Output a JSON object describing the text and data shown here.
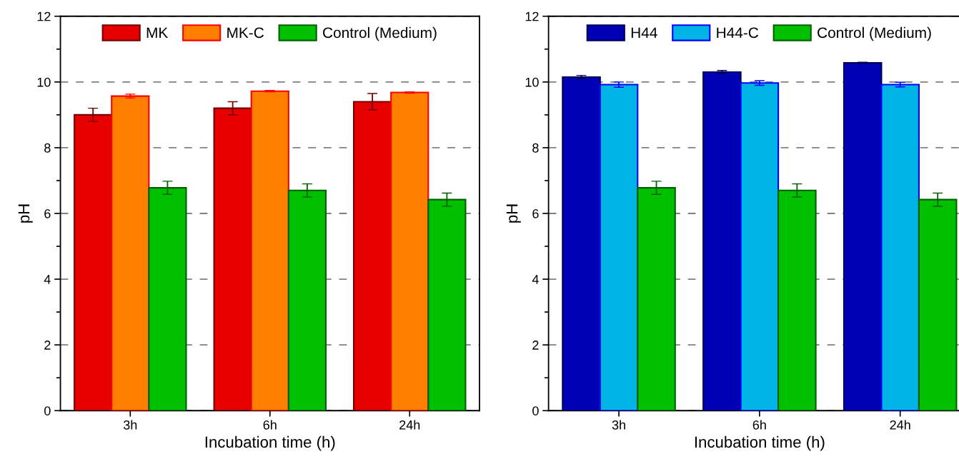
{
  "chart_data": [
    {
      "type": "bar",
      "xlabel": "Incubation time (h)",
      "ylabel": "pH",
      "categories": [
        "3h",
        "6h",
        "24h"
      ],
      "ylim": [
        0,
        12
      ],
      "yticks": [
        0,
        2,
        4,
        6,
        8,
        10,
        12
      ],
      "grid": "y",
      "legend": "top",
      "series": [
        {
          "name": "MK",
          "color": "#e60000",
          "values": [
            9.0,
            9.2,
            9.4
          ],
          "errors": [
            0.2,
            0.2,
            0.25
          ]
        },
        {
          "name": "MK-C",
          "color": "#ff7f00",
          "values": [
            9.57,
            9.72,
            9.68
          ],
          "errors": [
            0.06,
            0.02,
            0.02
          ]
        },
        {
          "name": "Control (Medium)",
          "color": "#00c000",
          "values": [
            6.78,
            6.7,
            6.42
          ],
          "errors": [
            0.2,
            0.2,
            0.2
          ]
        }
      ]
    },
    {
      "type": "bar",
      "xlabel": "Incubation time (h)",
      "ylabel": "pH",
      "categories": [
        "3h",
        "6h",
        "24h"
      ],
      "ylim": [
        0,
        12
      ],
      "yticks": [
        0,
        2,
        4,
        6,
        8,
        10,
        12
      ],
      "grid": "y",
      "legend": "top",
      "series": [
        {
          "name": "H44",
          "color": "#0000b4",
          "values": [
            10.15,
            10.3,
            10.58
          ],
          "errors": [
            0.05,
            0.05,
            0.02
          ]
        },
        {
          "name": "H44-C",
          "color": "#00b4e6",
          "values": [
            9.92,
            9.97,
            9.92
          ],
          "errors": [
            0.08,
            0.07,
            0.07
          ]
        },
        {
          "name": "Control (Medium)",
          "color": "#00c000",
          "values": [
            6.78,
            6.7,
            6.42
          ],
          "errors": [
            0.2,
            0.2,
            0.2
          ]
        }
      ]
    }
  ]
}
